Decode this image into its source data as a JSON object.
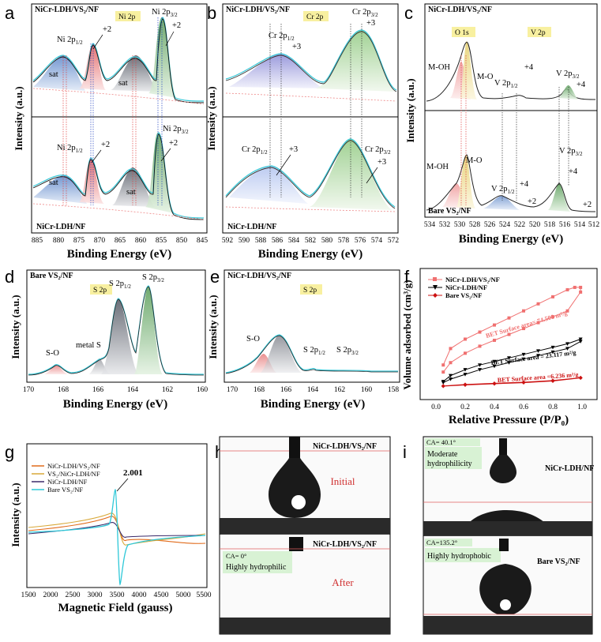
{
  "panels": {
    "a": {
      "letter": "a",
      "top_sample": "NiCr-LDH/VS₂/NF",
      "bottom_sample": "NiCr-LDH/NF",
      "tag": "Ni 2p",
      "xlabel": "Binding Energy (eV)",
      "ylabel": "Intensity (a.u.)",
      "xticks": [
        "885",
        "880",
        "875",
        "870",
        "865",
        "860",
        "855",
        "850",
        "845"
      ],
      "ann": {
        "ni12": "Ni 2p",
        "ni12_sub": "1/2",
        "ni32": "Ni 2p",
        "ni32_sub": "3/2",
        "plus2": "+2",
        "sat": "sat"
      }
    },
    "b": {
      "letter": "b",
      "top_sample": "NiCr-LDH/VS₂/NF",
      "bottom_sample": "NiCr-LDH/NF",
      "tag": "Cr 2p",
      "xlabel": "Binding Energy (eV)",
      "ylabel": "Intensity (a.u.)",
      "xticks": [
        "592",
        "590",
        "588",
        "586",
        "584",
        "582",
        "580",
        "578",
        "576",
        "574",
        "572"
      ],
      "ann": {
        "cr12": "Cr 2p",
        "cr12_sub": "1/2",
        "cr32": "Cr 2p",
        "cr32_sub": "3/2",
        "plus3": "+3"
      }
    },
    "c": {
      "letter": "c",
      "top_sample": "NiCr-LDH/VS₂/NF",
      "bottom_sample": "Bare VS₂/NF",
      "tag_o": "O 1s",
      "tag_v": "V 2p",
      "xlabel": "Binding Energy (eV)",
      "ylabel": "Intensity (a.u.)",
      "xticks": [
        "534",
        "532",
        "530",
        "528",
        "526",
        "524",
        "522",
        "520",
        "518",
        "516",
        "514",
        "512"
      ],
      "ann": {
        "moh": "M-OH",
        "mo": "M-O",
        "v12": "V 2p",
        "v12_sub": "1/2",
        "v32": "V 2p",
        "v32_sub": "3/2",
        "plus4": "+4",
        "plus2": "+2"
      }
    },
    "d": {
      "letter": "d",
      "sample": "Bare VS₂/NF",
      "tag": "S 2p",
      "xlabel": "Binding Energy (eV)",
      "ylabel": "Intensity (a.u.)",
      "xticks": [
        "170",
        "168",
        "166",
        "164",
        "162",
        "160"
      ],
      "ann": {
        "so": "S-O",
        "metal": "metal S",
        "s12": "S 2p",
        "s12_sub": "1/2",
        "s32": "S 2p",
        "s32_sub": "3/2"
      }
    },
    "e": {
      "letter": "e",
      "sample": "NiCr-LDH/VS₂/NF",
      "tag": "S 2p",
      "xlabel": "Binding Energy (eV)",
      "ylabel": "Intensity (a.u.)",
      "xticks": [
        "170",
        "168",
        "166",
        "164",
        "162",
        "160",
        "158"
      ],
      "ann": {
        "so": "S-O",
        "s12": "S 2p",
        "s12_sub": "1/2",
        "s32": "S 2p",
        "s32_sub": "3/2"
      }
    },
    "f": {
      "letter": "f",
      "xlabel": "Relative Pressure (P/P₀)",
      "ylabel": "Volume adsorbed (cm³/g)",
      "xticks": [
        "0.0",
        "0.2",
        "0.4",
        "0.6",
        "0.8",
        "1.0"
      ],
      "legend": [
        "NiCr-LDH/VS₂/NF",
        "NiCr-LDH/NF",
        "Bare VS₂/NF"
      ],
      "ann": [
        "BET Surface area= 74.500 m²/g",
        "BET Surface area = 23.117 m²/g",
        "BET Surface area =6.236 m²/g"
      ]
    },
    "g": {
      "letter": "g",
      "xlabel": "Magnetic Field (gauss)",
      "ylabel": "Intensity (a.u.)",
      "xticks": [
        "1500",
        "2000",
        "2500",
        "3000",
        "3500",
        "4000",
        "4500",
        "5000",
        "5500"
      ],
      "legend": [
        "NiCr-LDH/VS₂/NF",
        "VS₂/NiCr-LDH/NF",
        "NiCr-LDH/NF",
        "Bare VS₂/NF"
      ],
      "peak": "2.001"
    },
    "h": {
      "letter": "h",
      "top_sample": "NiCr-LDH/VS₂/NF",
      "bottom_sample": "NiCr-LDH/VS₂/NF",
      "initial": "Initial",
      "after": "After",
      "ca": "CA= 0°",
      "label": "Highly hydrophilic"
    },
    "i": {
      "letter": "i",
      "top_sample": "NiCr-LDH/NF",
      "bottom_sample": "Bare VS₂/NF",
      "top_ca": "CA= 40.1°",
      "top_label1": "Moderate",
      "top_label2": "hydrophilicity",
      "bottom_ca": "CA=135.2°",
      "bottom_label": "Highly hydrophobic"
    }
  },
  "chart_data": [
    {
      "panel": "f",
      "type": "line",
      "xlabel": "Relative Pressure (P/P₀)",
      "ylabel": "Volume adsorbed (cm³/g)",
      "xlim": [
        -0.1,
        1.1
      ],
      "series": [
        {
          "name": "NiCr-LDH/VS₂/NF",
          "color": "#f07070",
          "adsorption": [
            [
              0.05,
              7
            ],
            [
              0.1,
              11
            ],
            [
              0.2,
              15
            ],
            [
              0.3,
              18
            ],
            [
              0.4,
              20.5
            ],
            [
              0.5,
              23
            ],
            [
              0.6,
              25.5
            ],
            [
              0.7,
              28
            ],
            [
              0.8,
              30.5
            ],
            [
              0.9,
              33
            ],
            [
              0.99,
              41
            ]
          ],
          "desorption": [
            [
              0.99,
              43
            ],
            [
              0.95,
              43
            ],
            [
              0.9,
              42
            ],
            [
              0.8,
              39
            ],
            [
              0.7,
              36
            ],
            [
              0.6,
              33
            ],
            [
              0.5,
              30
            ],
            [
              0.4,
              27
            ],
            [
              0.3,
              24
            ],
            [
              0.2,
              21
            ],
            [
              0.1,
              17
            ],
            [
              0.05,
              10
            ]
          ]
        },
        {
          "name": "NiCr-LDH/NF",
          "color": "#000000",
          "adsorption": [
            [
              0.05,
              2.5
            ],
            [
              0.1,
              4
            ],
            [
              0.2,
              6
            ],
            [
              0.3,
              8
            ],
            [
              0.4,
              9.5
            ],
            [
              0.5,
              11
            ],
            [
              0.6,
              12.5
            ],
            [
              0.7,
              14
            ],
            [
              0.8,
              15.5
            ],
            [
              0.9,
              17
            ],
            [
              0.99,
              20
            ]
          ],
          "desorption": [
            [
              0.99,
              21
            ],
            [
              0.9,
              19
            ],
            [
              0.8,
              17.5
            ],
            [
              0.7,
              16
            ],
            [
              0.6,
              14.5
            ],
            [
              0.5,
              13
            ],
            [
              0.4,
              11.5
            ],
            [
              0.3,
              10
            ],
            [
              0.2,
              8
            ],
            [
              0.1,
              5.5
            ],
            [
              0.05,
              3
            ]
          ]
        },
        {
          "name": "Bare VS₂/NF",
          "color": "#cc1111",
          "adsorption": [
            [
              0.05,
              1
            ],
            [
              0.2,
              1.5
            ],
            [
              0.4,
              2
            ],
            [
              0.6,
              2.5
            ],
            [
              0.8,
              3.2
            ],
            [
              0.99,
              4.5
            ]
          ],
          "desorption": [
            [
              0.99,
              4.6
            ],
            [
              0.8,
              3.4
            ],
            [
              0.6,
              2.7
            ],
            [
              0.4,
              2.2
            ],
            [
              0.2,
              1.7
            ],
            [
              0.05,
              1.1
            ]
          ]
        }
      ]
    },
    {
      "panel": "g",
      "type": "line",
      "xlabel": "Magnetic Field (gauss)",
      "ylabel": "Intensity (a.u.)",
      "xlim": [
        1500,
        5500
      ],
      "series": [
        {
          "name": "NiCr-LDH/VS₂/NF",
          "color": "#e06a1a"
        },
        {
          "name": "VS₂/NiCr-LDH/NF",
          "color": "#d8a838"
        },
        {
          "name": "NiCr-LDH/NF",
          "color": "#3a2a6a"
        },
        {
          "name": "Bare VS₂/NF",
          "color": "#2ec8d8"
        }
      ]
    }
  ]
}
